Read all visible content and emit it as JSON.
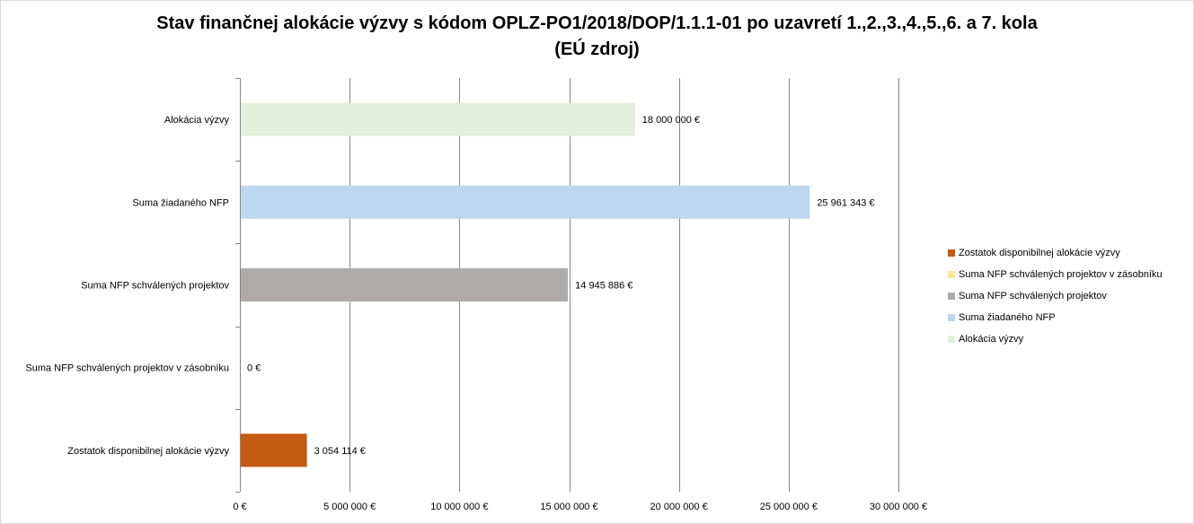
{
  "chart_data": {
    "type": "bar",
    "orientation": "horizontal",
    "title": "Stav finančnej alokácie výzvy s kódom OPLZ-PO1/2018/DOP/1.1.1-01 po uzavretí 1.,2.,3.,4.,5.,6. a 7. kola",
    "subtitle": "(EÚ zdroj)",
    "categories": [
      "Alokácia výzvy",
      "Suma žiadaného NFP",
      "Suma NFP schválených projektov",
      "Suma NFP schválených projektov v zásobníku",
      "Zostatok disponibilnej alokácie výzvy"
    ],
    "values": [
      18000000,
      25961343,
      14945886,
      0,
      3054114
    ],
    "data_labels": [
      "18 000 000 €",
      "25 961 343 €",
      "14 945 886 €",
      "0 €",
      "3 054 114 €"
    ],
    "colors": [
      "#e2efda",
      "#bdd7ee",
      "#aeaaaa",
      "#ffe699",
      "#c55a11"
    ],
    "xlim": [
      0,
      30000000
    ],
    "xticks": [
      0,
      5000000,
      10000000,
      15000000,
      20000000,
      25000000,
      30000000
    ],
    "xtick_labels": [
      "0 €",
      "5 000 000 €",
      "10 000 000 €",
      "15 000 000 €",
      "20 000 000 €",
      "25 000 000 €",
      "30 000 000 €"
    ],
    "grid": true,
    "legend_position": "right",
    "legend": [
      {
        "label": "Zostatok disponibilnej alokácie výzvy",
        "color": "#c55a11"
      },
      {
        "label": "Suma NFP schválených projektov v zásobníku",
        "color": "#ffe699"
      },
      {
        "label": "Suma NFP schválených projektov",
        "color": "#aeaaaa"
      },
      {
        "label": "Suma žiadaného NFP",
        "color": "#bdd7ee"
      },
      {
        "label": "Alokácia výzvy",
        "color": "#e2efda"
      }
    ]
  }
}
